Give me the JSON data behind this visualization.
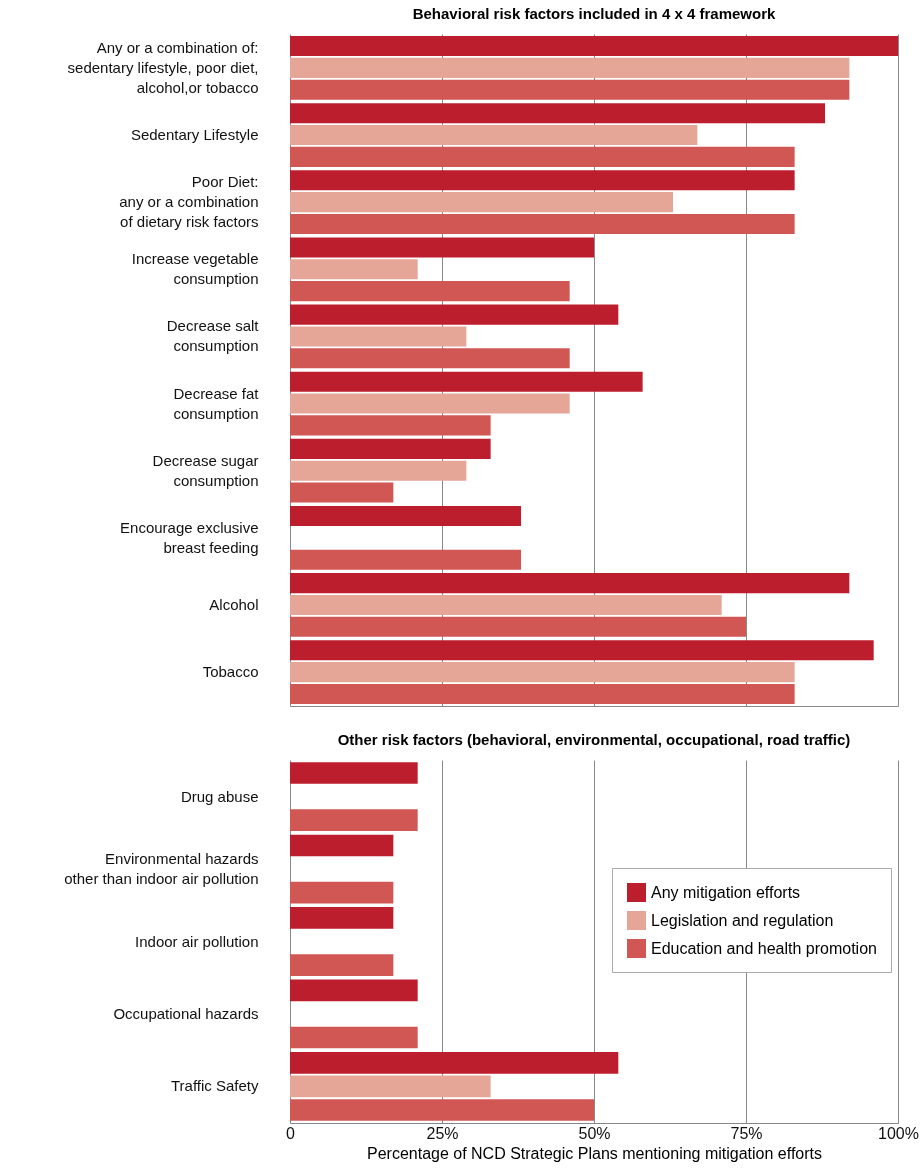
{
  "chart_data": [
    {
      "type": "bar",
      "orientation": "horizontal",
      "title": "Behavioral risk factors included in 4 x 4 framework",
      "categories": [
        "Any or a combination of:\nsedentary lifestyle, poor diet,\nalcohol,or tobacco",
        "Sedentary Lifestyle",
        "Poor Diet:\nany or a combination\nof dietary risk factors",
        "Increase vegetable\nconsumption",
        "Decrease salt\nconsumption",
        "Decrease fat\nconsumption",
        "Decrease sugar\nconsumption",
        "Encourage exclusive\nbreast feeding",
        "Alcohol",
        "Tobacco"
      ],
      "series": [
        {
          "color": "#bc1e2d",
          "values": [
            100,
            88,
            83,
            50,
            54,
            58,
            33,
            38,
            92,
            96
          ]
        },
        {
          "color": "#e5a698",
          "values": [
            92,
            67,
            63,
            21,
            29,
            46,
            29,
            null,
            71,
            83
          ]
        },
        {
          "color": "#d05754",
          "values": [
            92,
            83,
            83,
            46,
            46,
            33,
            17,
            38,
            75,
            83
          ]
        }
      ],
      "xlim": [
        0,
        100
      ],
      "xticks": [
        {
          "value": 0,
          "label": null
        },
        {
          "value": 25,
          "label": null
        },
        {
          "value": 50,
          "label": null
        },
        {
          "value": 75,
          "label": null
        },
        {
          "value": 100,
          "label": null
        }
      ],
      "grid": "x",
      "tick_labels": "y"
    },
    {
      "type": "bar",
      "orientation": "horizontal",
      "title": "Other risk factors (behavioral, environmental, occupational, road traffic)",
      "categories": [
        "Drug abuse",
        "Environmental hazards\nother than indoor air pollution",
        "Indoor air pollution",
        "Occupational hazards",
        "Traffic Safety"
      ],
      "series": [
        {
          "name": "Any mitigation efforts",
          "color": "#bc1e2d",
          "values": [
            21,
            17,
            17,
            21,
            54
          ]
        },
        {
          "name": "Legislation and regulation",
          "color": "#e5a698",
          "values": [
            null,
            null,
            null,
            null,
            33
          ]
        },
        {
          "name": "Education and health promotion",
          "color": "#d05754",
          "values": [
            21,
            17,
            17,
            21,
            50
          ]
        }
      ],
      "xlim": [
        0,
        100
      ],
      "xticks": [
        0,
        {
          "value": 25,
          "label": "25%"
        },
        {
          "value": 50,
          "label": "50%"
        },
        {
          "value": 75,
          "label": "75%"
        },
        {
          "value": 100,
          "label": "100%"
        }
      ],
      "xlabel": "Percentage of NCD Strategic Plans mentioning mitigation efforts",
      "grid": "x",
      "legend": "right"
    }
  ]
}
